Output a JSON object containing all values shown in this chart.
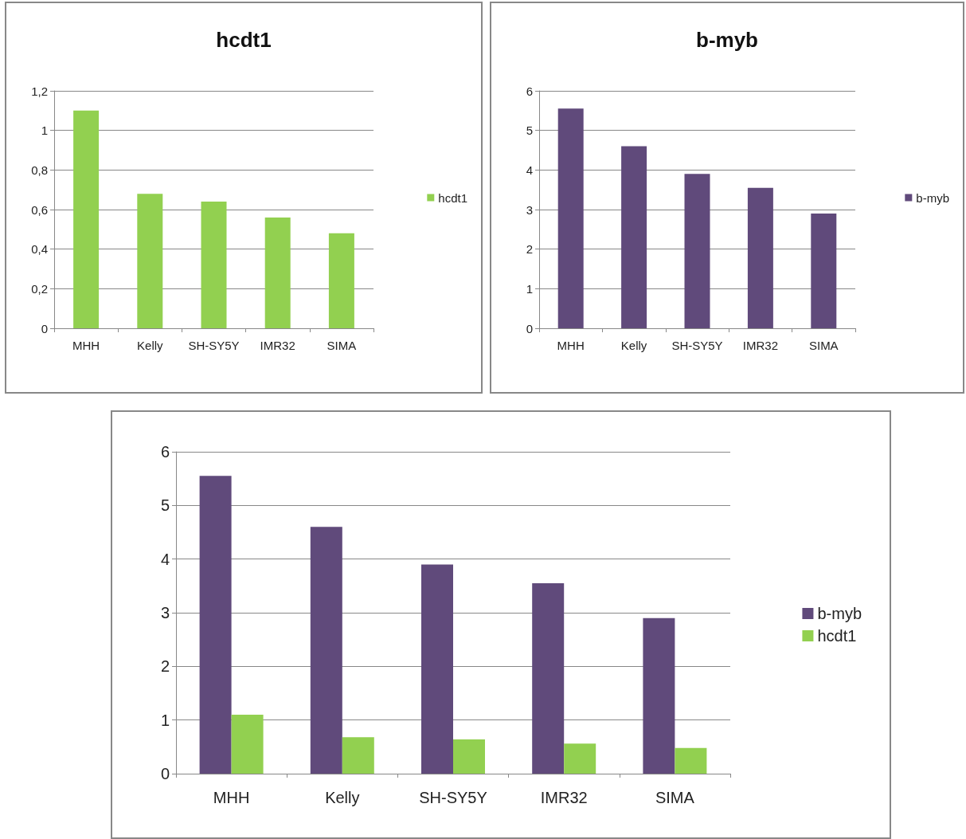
{
  "chart_data": [
    {
      "type": "bar",
      "title": "hcdt1",
      "categories": [
        "MHH",
        "Kelly",
        "SH-SY5Y",
        "IMR32",
        "SIMA"
      ],
      "series": [
        {
          "name": "hcdt1",
          "color": "#92d050",
          "values": [
            1.1,
            0.68,
            0.64,
            0.56,
            0.48
          ]
        }
      ],
      "ylim": [
        0,
        1.2
      ],
      "yticks": [
        0,
        {
          "value": 0.2,
          "label": "0,2"
        },
        {
          "value": 0.4,
          "label": "0,4"
        },
        {
          "value": 0.6,
          "label": "0,6"
        },
        {
          "value": 0.8,
          "label": "0,8"
        },
        1,
        {
          "value": 1.2,
          "label": "1,2"
        }
      ],
      "grid": "y",
      "legend": "right"
    },
    {
      "type": "bar",
      "title": "b-myb",
      "categories": [
        "MHH",
        "Kelly",
        "SH-SY5Y",
        "IMR32",
        "SIMA"
      ],
      "series": [
        {
          "name": "b-myb",
          "color": "#604a7b",
          "values": [
            5.55,
            4.6,
            3.9,
            3.55,
            2.9
          ]
        }
      ],
      "ylim": [
        0,
        6
      ],
      "yticks": [
        0,
        1,
        2,
        3,
        4,
        5,
        6
      ],
      "grid": "y",
      "legend": "right"
    },
    {
      "type": "bar",
      "categories": [
        "MHH",
        "Kelly",
        "SH-SY5Y",
        "IMR32",
        "SIMA"
      ],
      "series": [
        {
          "name": "b-myb",
          "color": "#604a7b",
          "values": [
            5.55,
            4.6,
            3.9,
            3.55,
            2.9
          ]
        },
        {
          "name": "hcdt1",
          "color": "#92d050",
          "values": [
            1.1,
            0.68,
            0.64,
            0.56,
            0.48
          ]
        }
      ],
      "ylim": [
        0,
        6
      ],
      "yticks": [
        0,
        1,
        2,
        3,
        4,
        5,
        6
      ],
      "grid": "y",
      "legend": "right"
    }
  ]
}
